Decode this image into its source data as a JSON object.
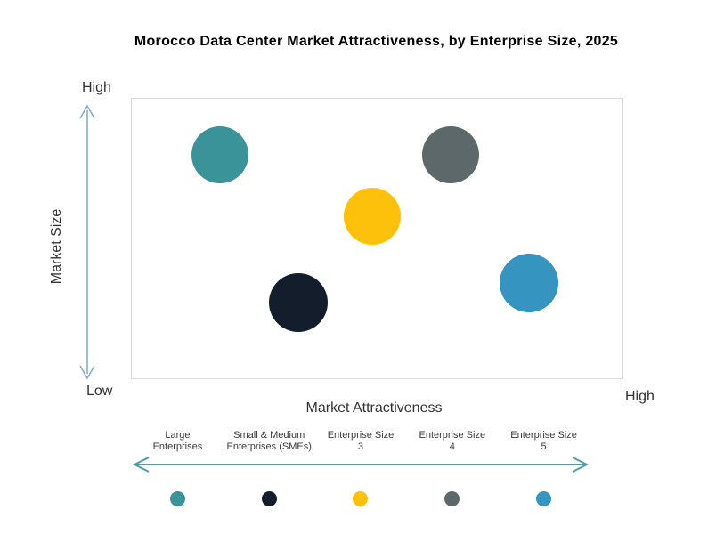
{
  "title": "Morocco Data Center Market Attractiveness,  by Enterprise Size, 2025",
  "axes": {
    "y_label": "Market Size",
    "y_high": "High",
    "y_low": "Low",
    "x_label": "Market Attractiveness",
    "x_high": "High"
  },
  "colors": {
    "teal": "#3A9399",
    "navy": "#131D2B",
    "yellow": "#FDC00B",
    "gray": "#5D686B",
    "blue": "#3595C0",
    "v_arrow": "#7FA8CC",
    "h_arrow": "#4E9CAB",
    "plot_border": "#D9D9D9"
  },
  "chart_data": {
    "type": "scatter",
    "title": "Morocco Data Center Market Attractiveness, by Enterprise Size, 2025",
    "xlabel": "Market Attractiveness",
    "ylabel": "Market Size",
    "x_axis_endpoints": [
      "",
      "High"
    ],
    "y_axis_endpoints": [
      "Low",
      "High"
    ],
    "axis_scale": "relative 0-1 (Low to High), no numeric ticks shown",
    "points": [
      {
        "label": "Large Enterprises",
        "x": 0.18,
        "y": 0.8,
        "r": 32,
        "color": "#3A9399"
      },
      {
        "label": "Small & Medium Enterprises (SMEs)",
        "x": 0.34,
        "y": 0.27,
        "r": 33,
        "color": "#131D2B"
      },
      {
        "label": "Enterprise Size 3",
        "x": 0.49,
        "y": 0.58,
        "r": 32,
        "color": "#FDC00B"
      },
      {
        "label": "Enterprise Size 4",
        "x": 0.65,
        "y": 0.8,
        "r": 32,
        "color": "#5D686B"
      },
      {
        "label": "Enterprise Size 5",
        "x": 0.81,
        "y": 0.34,
        "r": 33,
        "color": "#3595C0"
      }
    ],
    "legend_position": "bottom"
  },
  "legend": {
    "items": [
      {
        "line1": "Large",
        "line2": "Enterprises",
        "color": "#3A9399"
      },
      {
        "line1": "Small & Medium",
        "line2": "Enterprises (SMEs)",
        "color": "#131D2B"
      },
      {
        "line1": "Enterprise Size",
        "line2": "3",
        "color": "#FDC00B"
      },
      {
        "line1": "Enterprise Size",
        "line2": "4",
        "color": "#5D686B"
      },
      {
        "line1": "Enterprise Size",
        "line2": "5",
        "color": "#3595C0"
      }
    ]
  }
}
